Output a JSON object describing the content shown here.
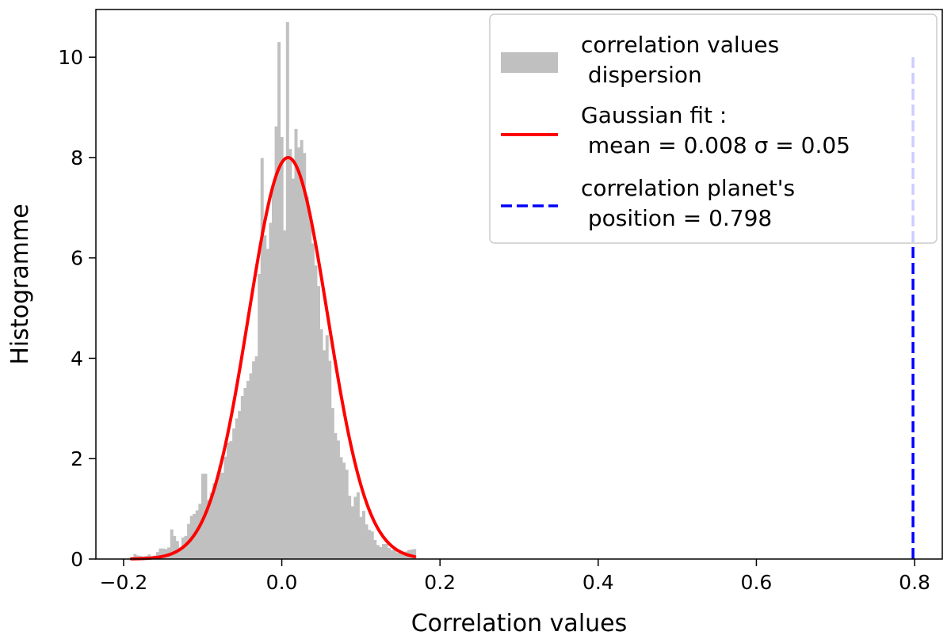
{
  "chart_data": {
    "type": "bar",
    "title": "",
    "xlabel": "Correlation values",
    "ylabel": "Histogramme",
    "xlim": [
      -0.235,
      0.835
    ],
    "ylim": [
      0,
      10.95
    ],
    "xticks": [
      -0.2,
      0.0,
      0.2,
      0.4,
      0.6,
      0.8
    ],
    "xtick_labels": [
      "−0.2",
      "0.0",
      "0.2",
      "0.4",
      "0.6",
      "0.8"
    ],
    "yticks": [
      0,
      2,
      4,
      6,
      8,
      10
    ],
    "ytick_labels": [
      "0",
      "2",
      "4",
      "6",
      "8",
      "10"
    ],
    "grid": false,
    "legend_position": "top-right",
    "histogram": {
      "name": "correlation values dispersion",
      "color": "#c0c0c0",
      "bin_start": -0.1875,
      "bin_width": 0.00357,
      "values": [
        0.1,
        0.07,
        0.06,
        0.05,
        0.06,
        0.09,
        0.06,
        0.07,
        0.14,
        0.21,
        0.21,
        0.2,
        0.23,
        0.59,
        0.46,
        0.36,
        0.23,
        0.43,
        0.46,
        0.7,
        0.86,
        0.9,
        0.97,
        1.1,
        1.7,
        1.7,
        1.18,
        1.32,
        1.51,
        1.53,
        1.86,
        1.72,
        2.04,
        2.32,
        2.35,
        2.6,
        2.8,
        2.95,
        3.25,
        3.41,
        3.55,
        3.7,
        3.94,
        4.04,
        5.68,
        7.99,
        6.45,
        6.18,
        6.7,
        7.45,
        8.62,
        10.3,
        8.41,
        6.55,
        10.7,
        8.17,
        7.58,
        8.57,
        8.2,
        8.35,
        8.09,
        7.22,
        6.85,
        6.29,
        5.85,
        5.44,
        4.58,
        4.16,
        4.46,
        3.95,
        3.01,
        2.51,
        2.36,
        2.03,
        1.92,
        1.78,
        1.26,
        1.05,
        1.24,
        1.33,
        0.84,
        0.96,
        0.69,
        0.58,
        0.55,
        0.38,
        0.28,
        0.24,
        0.3,
        0.3,
        0.22,
        0.18,
        0.22,
        0.13,
        0.16,
        0.1,
        0.15,
        0.18,
        0.19,
        0.2
      ]
    },
    "gaussian_fit": {
      "name": "Gaussian fit :\n mean = 0.008 σ = 0.05",
      "mean": 0.008,
      "sigma": 0.05,
      "peak": 8.0,
      "x_range": [
        -0.19,
        0.168
      ],
      "color": "#ff0000"
    },
    "planet_line": {
      "name": "correlation planet's\n position = 0.798",
      "x": 0.798,
      "y_range": [
        0,
        10
      ],
      "color": "#0000ff"
    },
    "legend": [
      {
        "line1": "correlation values",
        "line2": " dispersion"
      },
      {
        "line1": "Gaussian fit :",
        "line2": " mean = 0.008 σ = 0.05"
      },
      {
        "line1": "correlation planet's",
        "line2": " position = 0.798"
      }
    ]
  }
}
